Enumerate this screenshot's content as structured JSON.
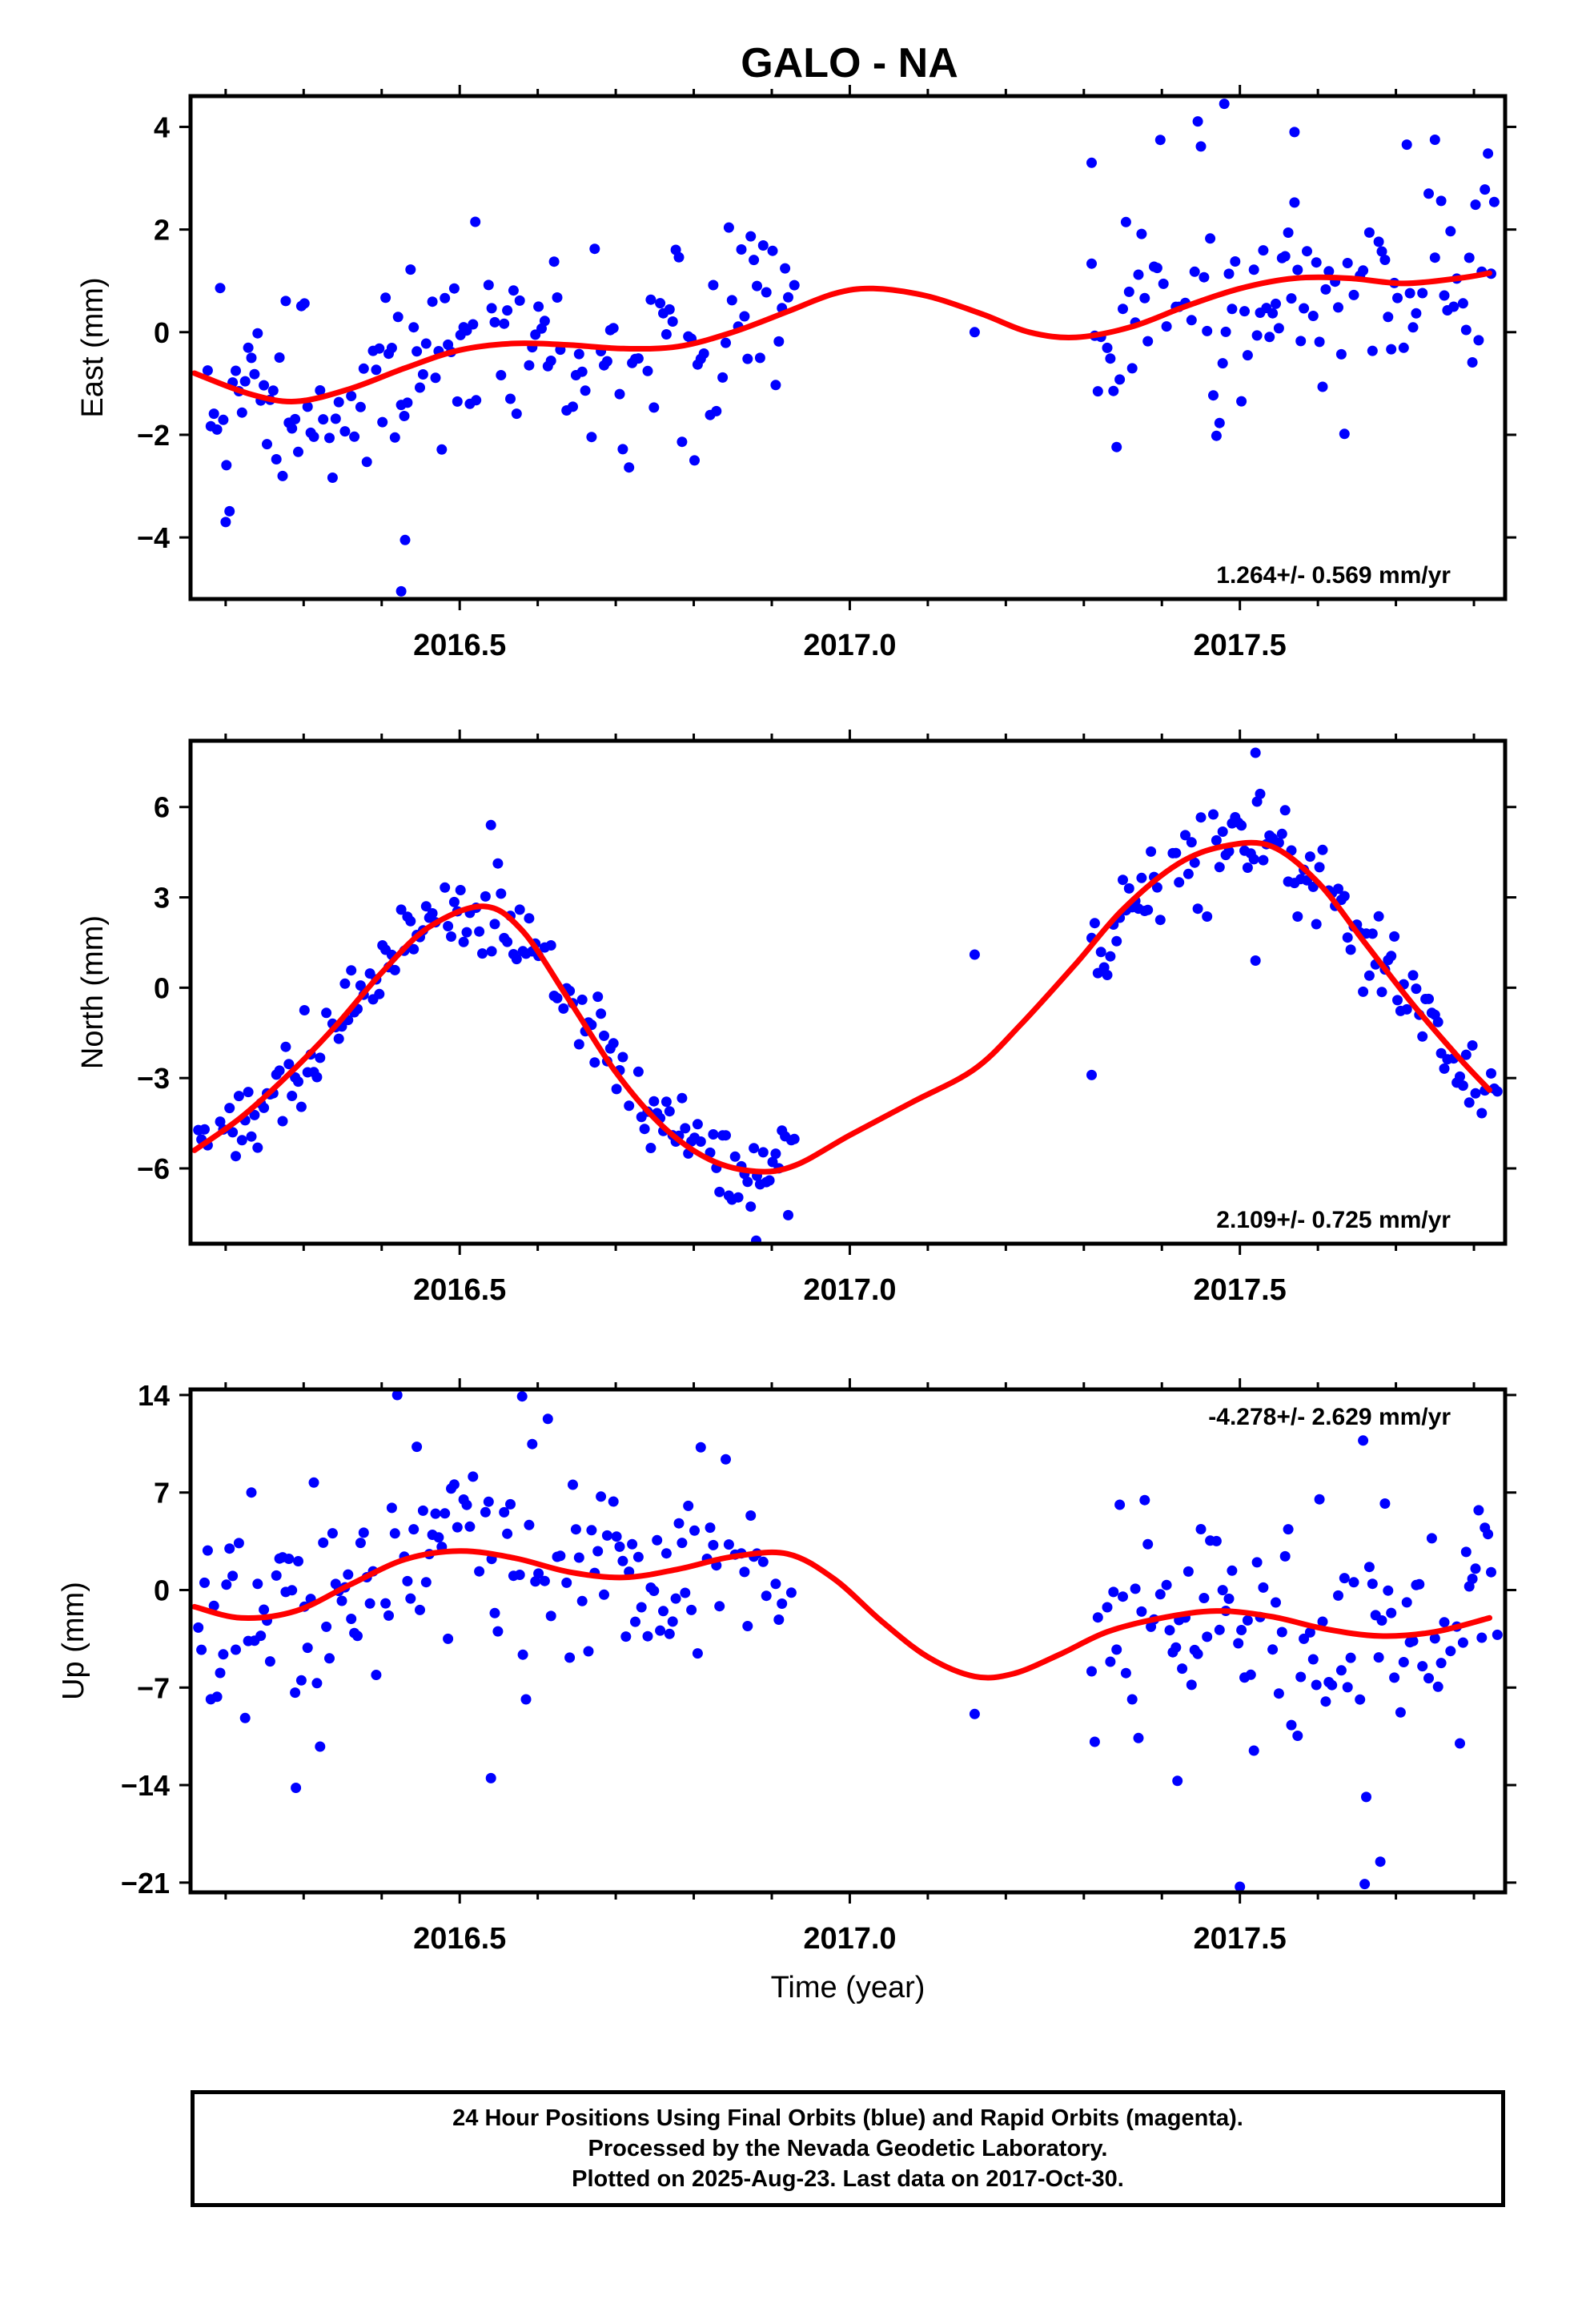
{
  "title": "GALO - NA",
  "xlabel": "Time (year)",
  "colors": {
    "final_orbits": "#0000ff",
    "model": "#ff0000",
    "frame": "#000000"
  },
  "footer": [
    "24 Hour Positions Using Final Orbits (blue) and Rapid Orbits (magenta).",
    "Processed by the Nevada Geodetic Laboratory.",
    "Plotted on 2025-Aug-23. Last data on 2017-Oct-30."
  ],
  "chart_data": [
    {
      "type": "scatter",
      "ylabel": "East (mm)",
      "xlim": [
        2016.155,
        2017.84
      ],
      "ylim": [
        -5.2,
        4.6
      ],
      "x_ticks": [
        2016.5,
        2017.0,
        2017.5
      ],
      "x_tick_labels": [
        "2016.5",
        "2017.0",
        "2017.5"
      ],
      "y_ticks": [
        -4,
        -2,
        0,
        2,
        4
      ],
      "y_tick_labels": [
        "−4",
        "−2",
        "0",
        "2",
        "4"
      ],
      "rate_label": "1.264+/- 0.569 mm/yr",
      "rate_position": "bottom-right",
      "model_curve": {
        "x": [
          2016.16,
          2016.23,
          2016.29,
          2016.36,
          2016.43,
          2016.5,
          2016.57,
          2016.64,
          2016.71,
          2016.78,
          2016.85,
          2016.92,
          2016.98,
          2017.03,
          2017.1,
          2017.17,
          2017.23,
          2017.29,
          2017.36,
          2017.43,
          2017.5,
          2017.57,
          2017.64,
          2017.71,
          2017.78,
          2017.82
        ],
        "y": [
          -0.8,
          -1.2,
          -1.35,
          -1.1,
          -0.7,
          -0.35,
          -0.22,
          -0.25,
          -0.32,
          -0.28,
          0.0,
          0.4,
          0.75,
          0.85,
          0.7,
          0.35,
          0.0,
          -0.1,
          0.1,
          0.5,
          0.85,
          1.05,
          1.05,
          0.95,
          1.05,
          1.15
        ]
      },
      "scatter_segments": [
        {
          "start": 2016.165,
          "end": 2016.93,
          "step": 0.004,
          "noise": 1.0
        },
        {
          "start": 2017.31,
          "end": 2017.83,
          "step": 0.004,
          "noise": 1.15
        }
      ],
      "scatter_extra": [
        {
          "x": 2017.16,
          "y": 0.0
        },
        {
          "x": 2016.425,
          "y": -5.05
        },
        {
          "x": 2016.43,
          "y": -4.05
        },
        {
          "x": 2016.2,
          "y": -3.7
        },
        {
          "x": 2016.52,
          "y": 2.15
        },
        {
          "x": 2017.48,
          "y": 4.45
        },
        {
          "x": 2017.57,
          "y": 3.9
        },
        {
          "x": 2017.75,
          "y": 3.75
        },
        {
          "x": 2017.31,
          "y": 3.3
        }
      ]
    },
    {
      "type": "scatter",
      "ylabel": "North (mm)",
      "xlim": [
        2016.155,
        2017.84
      ],
      "ylim": [
        -8.5,
        8.2
      ],
      "x_ticks": [
        2016.5,
        2017.0,
        2017.5
      ],
      "x_tick_labels": [
        "2016.5",
        "2017.0",
        "2017.5"
      ],
      "y_ticks": [
        -6,
        -3,
        0,
        3,
        6
      ],
      "y_tick_labels": [
        "−6",
        "−3",
        "0",
        "3",
        "6"
      ],
      "rate_label": "2.109+/- 0.725 mm/yr",
      "rate_position": "bottom-right",
      "model_curve": {
        "x": [
          2016.16,
          2016.22,
          2016.28,
          2016.34,
          2016.4,
          2016.46,
          2016.53,
          2016.58,
          2016.64,
          2016.7,
          2016.76,
          2016.82,
          2016.88,
          2016.93,
          2017.0,
          2017.08,
          2017.16,
          2017.22,
          2017.29,
          2017.35,
          2017.42,
          2017.48,
          2017.54,
          2017.6,
          2017.66,
          2017.72,
          2017.78,
          2017.82
        ],
        "y": [
          -5.4,
          -4.3,
          -2.9,
          -1.3,
          0.5,
          2.0,
          2.7,
          1.9,
          -0.4,
          -2.8,
          -4.6,
          -5.7,
          -6.1,
          -5.9,
          -4.9,
          -3.8,
          -2.7,
          -1.2,
          0.8,
          2.6,
          4.1,
          4.7,
          4.7,
          3.5,
          1.5,
          -0.5,
          -2.3,
          -3.4
        ]
      },
      "scatter_segments": [
        {
          "start": 2016.165,
          "end": 2016.93,
          "step": 0.004,
          "noise": 0.7
        },
        {
          "start": 2017.31,
          "end": 2017.83,
          "step": 0.004,
          "noise": 0.75
        }
      ],
      "scatter_extra": [
        {
          "x": 2017.16,
          "y": 1.1
        },
        {
          "x": 2016.88,
          "y": -8.4
        },
        {
          "x": 2017.31,
          "y": -2.9
        },
        {
          "x": 2017.52,
          "y": 7.8
        },
        {
          "x": 2016.54,
          "y": 5.4
        },
        {
          "x": 2017.52,
          "y": 0.9
        }
      ]
    },
    {
      "type": "scatter",
      "ylabel": "Up (mm)",
      "xlim": [
        2016.155,
        2017.84
      ],
      "ylim": [
        -21.7,
        14.4
      ],
      "x_ticks": [
        2016.5,
        2017.0,
        2017.5
      ],
      "x_tick_labels": [
        "2016.5",
        "2017.0",
        "2017.5"
      ],
      "y_ticks": [
        -21,
        -14,
        -7,
        0,
        7,
        14
      ],
      "y_tick_labels": [
        "−21",
        "−14",
        "−7",
        "0",
        "7",
        "14"
      ],
      "rate_label": "-4.278+/- 2.629 mm/yr",
      "rate_position": "top-right",
      "model_curve": {
        "x": [
          2016.16,
          2016.22,
          2016.29,
          2016.36,
          2016.43,
          2016.5,
          2016.57,
          2016.64,
          2016.71,
          2016.78,
          2016.85,
          2016.92,
          2016.98,
          2017.04,
          2017.1,
          2017.16,
          2017.21,
          2017.27,
          2017.33,
          2017.4,
          2017.47,
          2017.54,
          2017.61,
          2017.68,
          2017.75,
          2017.82
        ],
        "y": [
          -1.2,
          -2.0,
          -1.5,
          0.4,
          2.2,
          2.8,
          2.3,
          1.3,
          0.9,
          1.5,
          2.4,
          2.6,
          0.8,
          -2.2,
          -4.8,
          -6.2,
          -6.0,
          -4.6,
          -3.0,
          -2.0,
          -1.5,
          -1.9,
          -2.8,
          -3.3,
          -3.0,
          -2.0
        ]
      },
      "scatter_segments": [
        {
          "start": 2016.165,
          "end": 2016.93,
          "step": 0.004,
          "noise": 3.8
        },
        {
          "start": 2017.31,
          "end": 2017.83,
          "step": 0.004,
          "noise": 4.2
        }
      ],
      "scatter_extra": [
        {
          "x": 2017.16,
          "y": -8.9
        },
        {
          "x": 2016.29,
          "y": -14.2
        },
        {
          "x": 2016.54,
          "y": -13.5
        },
        {
          "x": 2016.42,
          "y": 14.0
        },
        {
          "x": 2016.58,
          "y": 13.9
        },
        {
          "x": 2017.5,
          "y": -21.3
        },
        {
          "x": 2017.66,
          "y": -21.1
        },
        {
          "x": 2017.68,
          "y": -19.5
        },
        {
          "x": 2017.42,
          "y": -13.7
        }
      ]
    }
  ]
}
